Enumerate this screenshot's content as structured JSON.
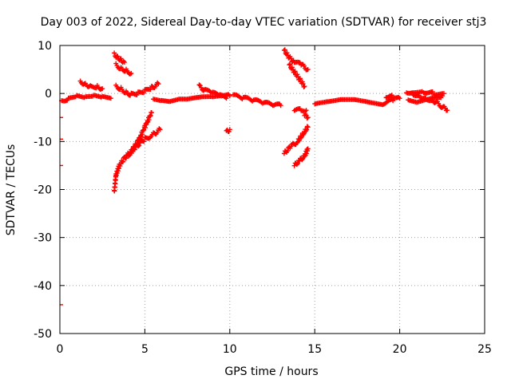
{
  "chart_data": {
    "type": "scatter",
    "title": "Day 003 of 2022, Sidereal Day-to-day VTEC variation (SDTVAR) for receiver stj3",
    "xlabel": "GPS time / hours",
    "ylabel": "SDTVAR / TECUs",
    "xlim": [
      0,
      25
    ],
    "ylim": [
      -50,
      10
    ],
    "xticks": [
      "0",
      "5",
      "10",
      "15",
      "20",
      "25"
    ],
    "yticks": [
      "10",
      "0",
      "-10",
      "-20",
      "-30",
      "-40",
      "-50"
    ],
    "grid": true,
    "marker": "plus",
    "series_color": "#ff0000",
    "segments": [
      {
        "name": "baseline-early",
        "x": [
          0.1,
          0.5,
          1.0,
          1.5,
          2.0,
          2.5,
          3.0
        ],
        "y": [
          -1.5,
          -1.0,
          -0.5,
          -0.8,
          -0.5,
          -0.8,
          -1.0
        ]
      },
      {
        "name": "bump-early",
        "x": [
          1.2,
          1.5,
          1.8,
          2.2,
          2.5
        ],
        "y": [
          2.5,
          2.0,
          1.5,
          1.5,
          1.0
        ]
      },
      {
        "name": "high-short-1",
        "x": [
          3.2,
          3.4,
          3.6,
          3.8
        ],
        "y": [
          8.2,
          7.5,
          7.0,
          6.5
        ]
      },
      {
        "name": "high-short-2",
        "x": [
          3.3,
          3.6,
          3.9,
          4.2
        ],
        "y": [
          6.0,
          5.2,
          4.8,
          4.2
        ]
      },
      {
        "name": "drop-1",
        "x": [
          3.2,
          3.3,
          3.5,
          3.8,
          4.2,
          4.6,
          5.0,
          5.4
        ],
        "y": [
          -20.5,
          -17.0,
          -15.0,
          -13.5,
          -12.0,
          -10.0,
          -7.0,
          -4.0
        ]
      },
      {
        "name": "drop-2",
        "x": [
          4.0,
          4.5,
          5.0,
          5.5,
          5.9
        ],
        "y": [
          -13.0,
          -11.0,
          -9.5,
          -8.5,
          -7.5
        ]
      },
      {
        "name": "mid-bump",
        "x": [
          3.3,
          3.6,
          3.9,
          4.2,
          4.6,
          5.0,
          5.4,
          5.8
        ],
        "y": [
          1.5,
          1.0,
          0.2,
          -0.2,
          0.0,
          0.5,
          1.2,
          2.0
        ]
      },
      {
        "name": "baseline-mid",
        "x": [
          5.5,
          6.0,
          6.5,
          7.0,
          7.5,
          8.0,
          8.5,
          9.0,
          9.5,
          10.0
        ],
        "y": [
          -1.5,
          -1.8,
          -2.0,
          -1.5,
          -1.5,
          -1.2,
          -1.0,
          -1.0,
          -0.8,
          -0.5
        ]
      },
      {
        "name": "mid-bump-2",
        "x": [
          8.2,
          8.6,
          9.0,
          9.4,
          9.8
        ],
        "y": [
          1.5,
          0.5,
          0.0,
          -0.5,
          -1.0
        ]
      },
      {
        "name": "isolated-10",
        "x": [
          9.8,
          10.0
        ],
        "y": [
          -8.0,
          -7.5
        ]
      },
      {
        "name": "baseline-late-1",
        "x": [
          10.2,
          10.8,
          11.4,
          12.0,
          12.6,
          13.0
        ],
        "y": [
          -0.5,
          -1.0,
          -1.5,
          -2.0,
          -2.5,
          -2.5
        ]
      },
      {
        "name": "high-13",
        "x": [
          13.2,
          13.5,
          13.8,
          14.2,
          14.6
        ],
        "y": [
          9.0,
          7.5,
          6.5,
          6.0,
          5.0
        ]
      },
      {
        "name": "high-13-b",
        "x": [
          13.5,
          13.8,
          14.1,
          14.4
        ],
        "y": [
          6.0,
          4.5,
          3.0,
          1.5
        ]
      },
      {
        "name": "drop-13",
        "x": [
          13.2,
          13.6,
          14.0,
          14.4,
          14.6
        ],
        "y": [
          -12.5,
          -11.0,
          -10.0,
          -8.0,
          -7.0
        ]
      },
      {
        "name": "drop-13-b",
        "x": [
          13.8,
          14.1,
          14.4,
          14.6
        ],
        "y": [
          -15.0,
          -14.0,
          -13.0,
          -11.5
        ]
      },
      {
        "name": "short-14",
        "x": [
          13.8,
          14.2,
          14.5
        ],
        "y": [
          -3.5,
          -3.5,
          -3.5
        ]
      },
      {
        "name": "short-14-b",
        "x": [
          14.4,
          14.6
        ],
        "y": [
          -4.5,
          -5.0
        ]
      },
      {
        "name": "baseline-late-2",
        "x": [
          15.0,
          15.8,
          16.6,
          17.4,
          18.2,
          19.0,
          19.6
        ],
        "y": [
          -2.0,
          -1.5,
          -1.0,
          -1.0,
          -1.5,
          -2.0,
          -1.5
        ]
      },
      {
        "name": "late-bump",
        "x": [
          19.2,
          19.6,
          20.0
        ],
        "y": [
          -0.5,
          -0.5,
          -1.0
        ]
      },
      {
        "name": "tail-1",
        "x": [
          20.4,
          20.8,
          21.2,
          21.6,
          22.0,
          22.4,
          22.8
        ],
        "y": [
          0.5,
          0.0,
          -0.5,
          -1.0,
          -1.5,
          -2.5,
          -3.5
        ]
      },
      {
        "name": "tail-2",
        "x": [
          20.5,
          21.0,
          21.5,
          22.0,
          22.5
        ],
        "y": [
          -1.0,
          -1.5,
          -1.0,
          -0.5,
          -0.5
        ]
      },
      {
        "name": "tail-3",
        "x": [
          20.8,
          21.4,
          22.0,
          22.6
        ],
        "y": [
          0.5,
          0.5,
          0.0,
          0.0
        ]
      }
    ],
    "isolated_points": {
      "x": [
        0.0,
        0.0,
        0.0,
        0.0
      ],
      "y": [
        -5.0,
        -9.5,
        -15.0,
        -44.0
      ]
    }
  }
}
